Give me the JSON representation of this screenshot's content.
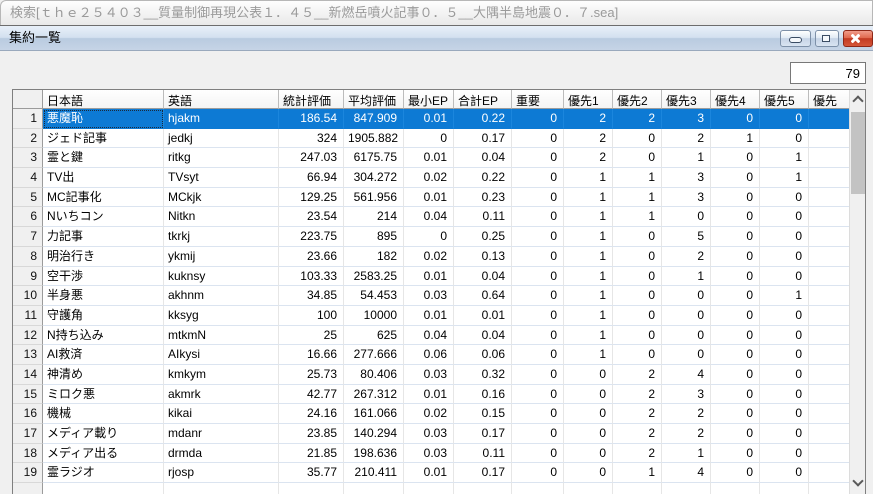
{
  "app_window": {
    "title": "検索[ｔｈｅ２５４０３__質量制御再現公表１．４５__新燃岳噴火記事０．５__大隅半島地震０．７.sea]"
  },
  "child_window": {
    "title": "集約一覧",
    "controls": {
      "minimize_icon": "minimize-dash",
      "restore_icon": "restore-square",
      "close_icon": "close-x"
    }
  },
  "record_count": "79",
  "table": {
    "columns": [
      "日本語",
      "英語",
      "統計評価",
      "平均評価",
      "最小EP",
      "合計EP",
      "重要",
      "優先1",
      "優先2",
      "優先3",
      "優先4",
      "優先5",
      "優先"
    ],
    "selected_row": 0,
    "focus_column": 1,
    "rows": [
      [
        "1",
        "悪魔恥",
        "hjakm",
        "186.54",
        "847.909",
        "0.01",
        "0.22",
        "0",
        "2",
        "2",
        "3",
        "0",
        "0",
        ""
      ],
      [
        "2",
        "ジェド記事",
        "jedkj",
        "324",
        "1905.882",
        "0",
        "0.17",
        "0",
        "2",
        "0",
        "2",
        "1",
        "0",
        ""
      ],
      [
        "3",
        "霊と鍵",
        "ritkg",
        "247.03",
        "6175.75",
        "0.01",
        "0.04",
        "0",
        "2",
        "0",
        "1",
        "0",
        "1",
        ""
      ],
      [
        "4",
        "TV出",
        "TVsyt",
        "66.94",
        "304.272",
        "0.02",
        "0.22",
        "0",
        "1",
        "1",
        "3",
        "0",
        "1",
        ""
      ],
      [
        "5",
        "MC記事化",
        "MCkjk",
        "129.25",
        "561.956",
        "0.01",
        "0.23",
        "0",
        "1",
        "1",
        "3",
        "0",
        "0",
        ""
      ],
      [
        "6",
        "Nいちコン",
        "Nitkn",
        "23.54",
        "214",
        "0.04",
        "0.11",
        "0",
        "1",
        "1",
        "0",
        "0",
        "0",
        ""
      ],
      [
        "7",
        "力記事",
        "tkrkj",
        "223.75",
        "895",
        "0",
        "0.25",
        "0",
        "1",
        "0",
        "5",
        "0",
        "0",
        ""
      ],
      [
        "8",
        "明治行き",
        "ykmij",
        "23.66",
        "182",
        "0.02",
        "0.13",
        "0",
        "1",
        "0",
        "2",
        "0",
        "0",
        ""
      ],
      [
        "9",
        "空干渉",
        "kuknsy",
        "103.33",
        "2583.25",
        "0.01",
        "0.04",
        "0",
        "1",
        "0",
        "1",
        "0",
        "0",
        ""
      ],
      [
        "10",
        "半身悪",
        "akhnm",
        "34.85",
        "54.453",
        "0.03",
        "0.64",
        "0",
        "1",
        "0",
        "0",
        "0",
        "1",
        ""
      ],
      [
        "11",
        "守護角",
        "kksyg",
        "100",
        "10000",
        "0.01",
        "0.01",
        "0",
        "1",
        "0",
        "0",
        "0",
        "0",
        ""
      ],
      [
        "12",
        "N持ち込み",
        "mtkmN",
        "25",
        "625",
        "0.04",
        "0.04",
        "0",
        "1",
        "0",
        "0",
        "0",
        "0",
        ""
      ],
      [
        "13",
        "AI救済",
        "AIkysi",
        "16.66",
        "277.666",
        "0.06",
        "0.06",
        "0",
        "1",
        "0",
        "0",
        "0",
        "0",
        ""
      ],
      [
        "14",
        "神清め",
        "kmkym",
        "25.73",
        "80.406",
        "0.03",
        "0.32",
        "0",
        "0",
        "2",
        "4",
        "0",
        "0",
        ""
      ],
      [
        "15",
        "ミロク悪",
        "akmrk",
        "42.77",
        "267.312",
        "0.01",
        "0.16",
        "0",
        "0",
        "2",
        "3",
        "0",
        "0",
        ""
      ],
      [
        "16",
        "機械",
        "kikai",
        "24.16",
        "161.066",
        "0.02",
        "0.15",
        "0",
        "0",
        "2",
        "2",
        "0",
        "0",
        ""
      ],
      [
        "17",
        "メディア載り",
        "mdanr",
        "23.85",
        "140.294",
        "0.03",
        "0.17",
        "0",
        "0",
        "2",
        "2",
        "0",
        "0",
        ""
      ],
      [
        "18",
        "メディア出る",
        "drmda",
        "21.85",
        "198.636",
        "0.03",
        "0.11",
        "0",
        "0",
        "2",
        "1",
        "0",
        "0",
        ""
      ],
      [
        "19",
        "霊ラジオ",
        "rjosp",
        "35.77",
        "210.411",
        "0.01",
        "0.17",
        "0",
        "0",
        "1",
        "4",
        "0",
        "0",
        ""
      ],
      [
        "",
        "",
        "",
        "",
        "",
        "",
        "",
        "",
        "",
        "",
        "",
        "",
        "",
        ""
      ]
    ]
  },
  "scrollbar": {
    "up_icon": "chevron-up",
    "down_icon": "chevron-down"
  },
  "colors": {
    "selection_bg": "#0d7ad4",
    "selection_text": "#ffffff",
    "close_button": "#c23a22",
    "titlebar_gradient_top": "#e8f0f9",
    "titlebar_gradient_bottom": "#c6d4e6"
  }
}
